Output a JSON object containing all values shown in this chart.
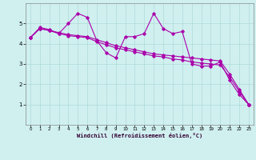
{
  "title": "Windchill (Refroidissement éolien,°C)",
  "background_color": "#d0f0f0",
  "grid_color": "#b0d8d8",
  "line_color": "#aa00aa",
  "xlim": [
    -0.5,
    23.5
  ],
  "ylim": [
    0,
    6
  ],
  "yticks": [
    1,
    2,
    3,
    4,
    5
  ],
  "xticks": [
    0,
    1,
    2,
    3,
    4,
    5,
    6,
    7,
    8,
    9,
    10,
    11,
    12,
    13,
    14,
    15,
    16,
    17,
    18,
    19,
    20,
    21,
    22,
    23
  ],
  "series1_x": [
    0,
    1,
    2,
    3,
    4,
    5,
    6,
    7,
    8,
    9,
    10,
    11,
    12,
    13,
    14,
    15,
    16,
    17,
    18,
    19,
    20,
    21,
    22,
    23
  ],
  "series1_y": [
    4.3,
    4.8,
    4.7,
    4.5,
    5.0,
    5.5,
    5.3,
    4.15,
    3.55,
    3.3,
    4.35,
    4.35,
    4.5,
    5.5,
    4.75,
    4.5,
    4.6,
    3.0,
    2.9,
    2.9,
    3.1,
    2.2,
    1.5,
    1.0
  ],
  "series2_x": [
    0,
    1,
    2,
    3,
    4,
    5,
    6,
    7,
    8,
    9,
    10,
    11,
    12,
    13,
    14,
    15,
    16,
    17,
    18,
    19,
    20,
    21,
    22,
    23
  ],
  "series2_y": [
    4.3,
    4.75,
    4.65,
    4.55,
    4.45,
    4.4,
    4.35,
    4.2,
    4.05,
    3.9,
    3.8,
    3.7,
    3.6,
    3.5,
    3.45,
    3.4,
    3.35,
    3.3,
    3.25,
    3.2,
    3.15,
    2.5,
    1.75,
    1.0
  ],
  "series3_x": [
    0,
    1,
    2,
    3,
    4,
    5,
    6,
    7,
    8,
    9,
    10,
    11,
    12,
    13,
    14,
    15,
    16,
    17,
    18,
    19,
    20,
    21,
    22,
    23
  ],
  "series3_y": [
    4.3,
    4.75,
    4.65,
    4.5,
    4.4,
    4.35,
    4.3,
    4.1,
    3.95,
    3.8,
    3.7,
    3.6,
    3.5,
    3.4,
    3.35,
    3.25,
    3.2,
    3.1,
    3.05,
    3.0,
    2.95,
    2.35,
    1.65,
    1.0
  ]
}
